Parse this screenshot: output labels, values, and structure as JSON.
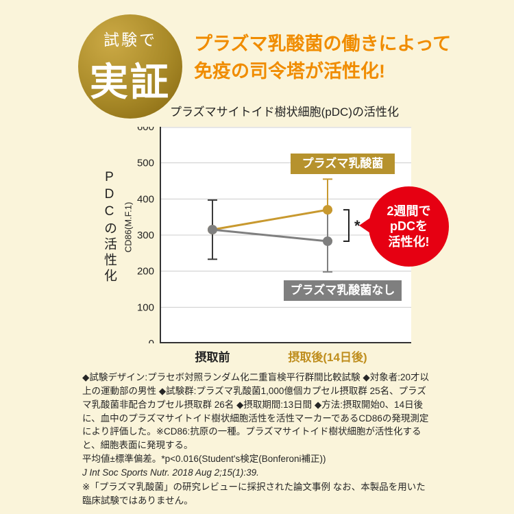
{
  "badge": {
    "top": "試験で",
    "main": "実証"
  },
  "heading": {
    "line1": "プラズマ乳酸菌の働きによって",
    "line2": "免疫の司令塔が活性化!"
  },
  "chart_data": {
    "type": "line",
    "title": "プラズマサイトイド樹状細胞(pDC)の活性化",
    "ylabel": "PDCの活性化",
    "ylabel_axis": "CD86(M.F.1)",
    "ylim": [
      0,
      600
    ],
    "yticks": [
      600,
      500,
      400,
      300,
      200,
      100,
      0
    ],
    "grid": true,
    "categories": [
      "摂取前",
      "摂取後(14日後)"
    ],
    "series": [
      {
        "name": "プラズマ乳酸菌",
        "color": "#c8992f",
        "values": [
          315,
          370
        ],
        "errors": [
          82,
          85
        ],
        "error_colors": [
          "#3a3a3a",
          "#c8992f"
        ]
      },
      {
        "name": "プラズマ乳酸菌なし",
        "color": "#7f7f7f",
        "values": [
          315,
          283
        ],
        "errors": [
          82,
          85
        ],
        "error_colors": [
          null,
          "#7f7f7f"
        ]
      }
    ],
    "significance_label": "*"
  },
  "annotation_badge": {
    "lines": [
      "2週間で",
      "pDCを",
      "活性化!"
    ],
    "color": "#e60012"
  },
  "notes": {
    "methodology": "◆試験デザイン:プラセボ対照ランダム化二重盲検平行群間比較試験 ◆対象者:20才以上の運動部の男性 ◆試験群:プラズマ乳酸菌1,000億個カプセル摂取群 25名、プラズマ乳酸菌非配合カプセル摂取群 26名 ◆摂取期間:13日間 ◆方法:摂取開始0、14日後に、血中のプラズマサイトイド樹状細胞活性を活性マーカーであるCD86の発現測定により評価した。※CD86:抗原の一種。プラズマサイトイド樹状細胞が活性化すると、細胞表面に発現する。",
    "stats": "平均値±標準偏差。*p<0.016(Student's検定(Bonferoni補正))",
    "reference": "J Int Soc Sports Nutr. 2018 Aug 2;15(1):39.",
    "disclaimer": "※「プラズマ乳酸菌」の研究レビューに採択された論文事例 なお、本製品を用いた臨床試験ではありません。"
  },
  "colors": {
    "background": "#faf4da",
    "heading": "#f08c00",
    "gold": "#c8992f",
    "gray": "#7f7f7f",
    "red": "#e60012"
  }
}
